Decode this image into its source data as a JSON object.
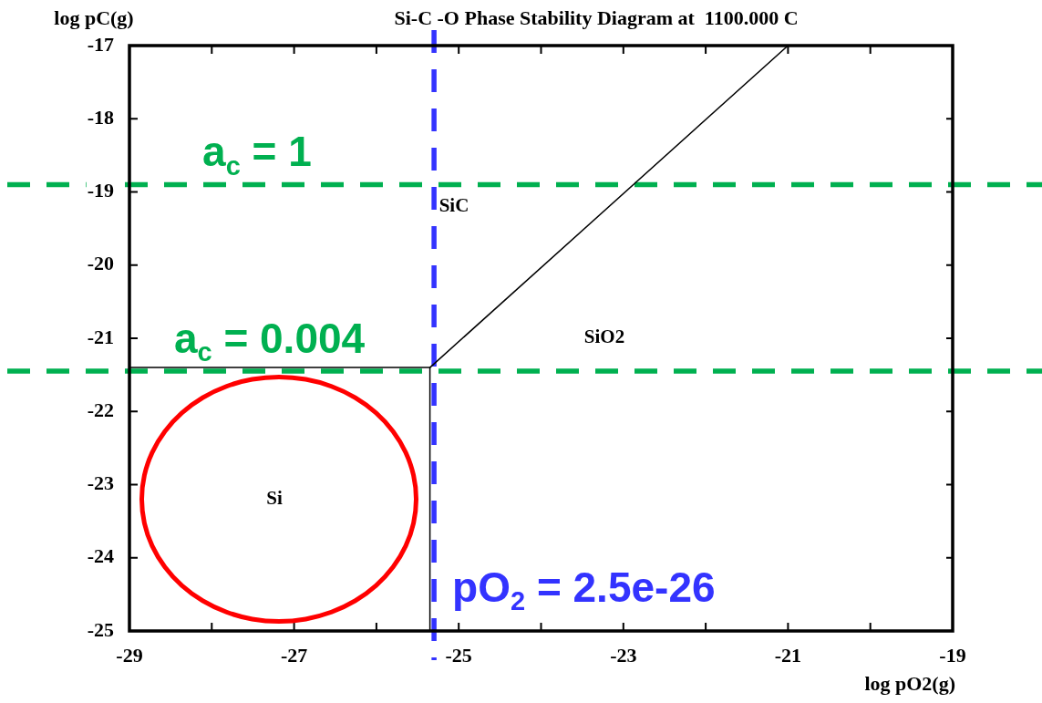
{
  "chart_data": {
    "type": "line",
    "title": "Si-C -O Phase Stability Diagram at  1100.000 C",
    "xlabel": "log pO2(g)",
    "ylabel": "log pC(g)",
    "series": [
      {
        "color": "#000000",
        "x": [
          -29,
          -25.35,
          -21
        ],
        "values": [
          -21.4,
          -21.4,
          -17
        ]
      },
      {
        "color": "#000000",
        "x": [
          -25.35,
          -25.35
        ],
        "values": [
          -21.4,
          -25
        ]
      }
    ],
    "xlim": [
      -29,
      -19
    ],
    "ylim": [
      -25,
      -17
    ],
    "xticks": [
      -29,
      {
        "value": -28,
        "label": null
      },
      -27,
      {
        "value": -26,
        "label": null
      },
      -25,
      {
        "value": -24,
        "label": null
      },
      -23,
      {
        "value": -22,
        "label": null
      },
      -21,
      {
        "value": -20,
        "label": null
      },
      -19
    ],
    "yticks": [
      -25,
      -24,
      -23,
      -22,
      -21,
      -20,
      -19,
      -18,
      -17
    ],
    "ref_lines": [
      {
        "axis": "y",
        "value": -18.9,
        "color": "#00b050",
        "line_style": "dashed"
      },
      {
        "axis": "y",
        "value": -21.45,
        "color": "#00b050",
        "line_style": "dashed"
      },
      {
        "axis": "x",
        "value": -25.3,
        "color": "#3333ff",
        "line_style": "dashed"
      }
    ],
    "annotations": [
      "SiC",
      "SiO2",
      "Si",
      {
        "text": "a$_{c}$ = 1",
        "x": -27.45,
        "y": -18.9
      },
      {
        "text": "a$_{c}$ = 0.004",
        "x": -27.3,
        "y": -21.45
      },
      {
        "text": "pO$_{2}$ = 2.5e-26",
        "x": -25.3,
        "y": -24.6
      }
    ]
  }
}
